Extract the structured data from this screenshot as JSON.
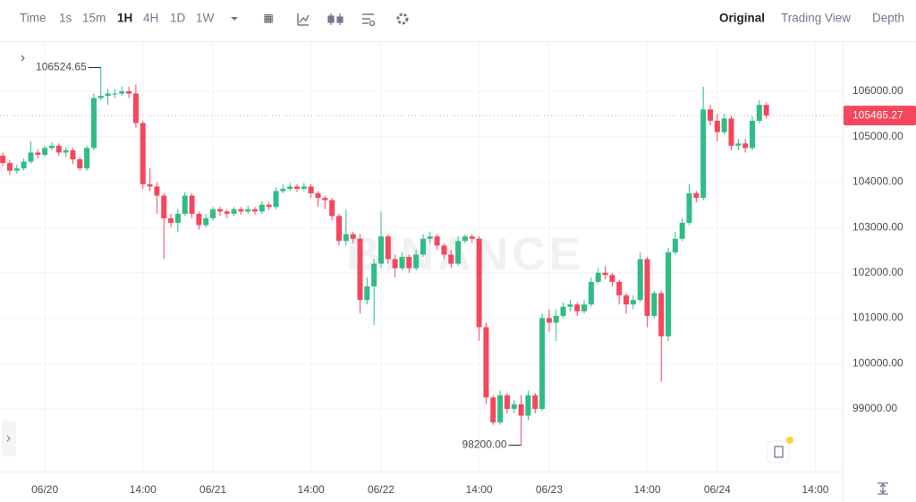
{
  "chart_data": {
    "type": "candlestick",
    "toolbar": {
      "intervals": [
        "Time",
        "1s",
        "15m",
        "1H",
        "4H",
        "1D",
        "1W"
      ],
      "active": "1H",
      "views": [
        "Original",
        "Trading View",
        "Depth"
      ],
      "active_view": "Original"
    },
    "watermark": "BINANCE",
    "up_color": "#2ebd85",
    "down_color": "#f6465d",
    "grid": true,
    "x": [
      -6,
      -5,
      -4,
      -3,
      -2,
      -1,
      0,
      1,
      2,
      3,
      4,
      5,
      6,
      7,
      8,
      9,
      10,
      11,
      12,
      13,
      14,
      15,
      16,
      17,
      18,
      19,
      20,
      21,
      22,
      23,
      24,
      25,
      26,
      27,
      28,
      29,
      30,
      31,
      32,
      33,
      34,
      35,
      36,
      37,
      38,
      39,
      40,
      41,
      42,
      43,
      44,
      45,
      46,
      47,
      48,
      49,
      50,
      51,
      52,
      53,
      54,
      55,
      56,
      57,
      58,
      59,
      60,
      61,
      62,
      63,
      64,
      65,
      66,
      67,
      68,
      69,
      70,
      71,
      72,
      73,
      74,
      75,
      76,
      77,
      78,
      79,
      80,
      81,
      82,
      83,
      84,
      85,
      86,
      87,
      88,
      89,
      90,
      91,
      92,
      93,
      94,
      95,
      96,
      97,
      98,
      99,
      100,
      101,
      102,
      103
    ],
    "open": [
      104580,
      104420,
      104250,
      104300,
      104450,
      104650,
      104600,
      104750,
      104800,
      104650,
      104700,
      104500,
      104300,
      104750,
      105850,
      105900,
      105950,
      105950,
      106000,
      105950,
      105300,
      103950,
      103900,
      103700,
      103200,
      103100,
      103300,
      103700,
      103300,
      103050,
      103200,
      103400,
      103350,
      103300,
      103400,
      103350,
      103400,
      103350,
      103500,
      103450,
      103800,
      103850,
      103900,
      103850,
      103900,
      103750,
      103650,
      103600,
      103250,
      102700,
      102850,
      102750,
      101400,
      101700,
      102200,
      102800,
      102300,
      102100,
      102350,
      102100,
      102400,
      102750,
      102800,
      102600,
      102400,
      102200,
      102700,
      102800,
      102750,
      100800,
      99250,
      98700,
      99300,
      99000,
      99100,
      98850,
      99300,
      99000,
      101000,
      100900,
      101050,
      101250,
      101300,
      101150,
      101300,
      101800,
      102000,
      101950,
      101800,
      101500,
      101300,
      101400,
      102300,
      101050,
      101550,
      100600,
      102450,
      102750,
      103100,
      103750,
      103650,
      105600,
      105350,
      105100,
      105400,
      104800,
      104850,
      104750,
      105350,
      105700
    ],
    "high": [
      104650,
      104480,
      104380,
      104520,
      104900,
      104720,
      104800,
      104880,
      104850,
      104760,
      104750,
      104550,
      104800,
      105950,
      106524.65,
      106050,
      106050,
      106100,
      106100,
      106150,
      105350,
      104300,
      104000,
      103750,
      103300,
      103400,
      103780,
      103750,
      103350,
      103300,
      103450,
      103450,
      103400,
      103450,
      103450,
      103480,
      103450,
      103580,
      103550,
      103880,
      103950,
      103980,
      103950,
      103980,
      103950,
      103800,
      103700,
      103650,
      103300,
      103400,
      102900,
      102850,
      101900,
      102300,
      103350,
      102850,
      102400,
      102450,
      102400,
      102500,
      102850,
      102900,
      102850,
      102650,
      102500,
      102800,
      102850,
      102850,
      102800,
      100900,
      99300,
      99400,
      99350,
      99200,
      99300,
      99400,
      99350,
      101100,
      101200,
      101200,
      101350,
      101400,
      101350,
      101400,
      101900,
      102100,
      102150,
      102000,
      101850,
      101550,
      101500,
      102450,
      102350,
      101600,
      101600,
      102550,
      102900,
      103200,
      103950,
      103800,
      106100,
      105700,
      105500,
      105500,
      105450,
      104950,
      104950,
      105450,
      105800,
      105750
    ],
    "low": [
      104350,
      104150,
      104180,
      104250,
      104400,
      104520,
      104550,
      104700,
      104580,
      104550,
      104400,
      104250,
      104250,
      104700,
      105800,
      105700,
      105850,
      105900,
      105850,
      105200,
      103850,
      103800,
      103300,
      102300,
      103000,
      102900,
      103250,
      103200,
      102950,
      103000,
      103150,
      103250,
      103200,
      103250,
      103280,
      103300,
      103280,
      103300,
      103380,
      103400,
      103750,
      103800,
      103780,
      103800,
      103650,
      103450,
      103400,
      103150,
      102600,
      102600,
      102650,
      101100,
      101300,
      100850,
      102100,
      102200,
      101900,
      102050,
      102000,
      102050,
      102350,
      102650,
      102500,
      102300,
      102100,
      102150,
      102650,
      102650,
      100500,
      99100,
      98650,
      98650,
      98900,
      98900,
      98200,
      98750,
      98900,
      98950,
      100700,
      100500,
      101000,
      101150,
      101050,
      101100,
      101250,
      101750,
      101850,
      101700,
      101300,
      101100,
      101200,
      101350,
      100800,
      101000,
      99600,
      100500,
      102400,
      102700,
      103050,
      103550,
      103600,
      105250,
      104900,
      105050,
      104700,
      104700,
      104650,
      104700,
      105300,
      105400
    ],
    "close": [
      104420,
      104250,
      104300,
      104450,
      104650,
      104600,
      104750,
      104800,
      104650,
      104700,
      104500,
      104300,
      104750,
      105850,
      105900,
      105950,
      105950,
      106000,
      105950,
      105300,
      103950,
      103900,
      103700,
      103200,
      103100,
      103300,
      103700,
      103300,
      103050,
      103200,
      103400,
      103350,
      103300,
      103400,
      103350,
      103400,
      103350,
      103500,
      103450,
      103800,
      103850,
      103900,
      103850,
      103900,
      103750,
      103650,
      103600,
      103250,
      102700,
      102850,
      102750,
      101400,
      101700,
      102200,
      102800,
      102300,
      102100,
      102350,
      102100,
      102400,
      102750,
      102800,
      102600,
      102400,
      102200,
      102700,
      102800,
      102750,
      100800,
      99250,
      98700,
      99300,
      99000,
      99100,
      98850,
      99300,
      99000,
      101000,
      100900,
      101050,
      101250,
      101300,
      101150,
      101300,
      101800,
      102000,
      101950,
      101800,
      101500,
      101300,
      101400,
      102300,
      101050,
      101550,
      100600,
      102450,
      102750,
      103100,
      103750,
      103650,
      105600,
      105350,
      105100,
      105400,
      104800,
      104850,
      104750,
      105350,
      105700,
      105465.27
    ],
    "annotations": [
      {
        "x": 8,
        "value": 106524.65,
        "label": "106524.65"
      },
      {
        "x": 68,
        "value": 98200,
        "label": "98200.00"
      }
    ],
    "xlim": [
      -6.4,
      113.9
    ],
    "xticks": [
      {
        "value": 0,
        "label": "06/20"
      },
      {
        "value": 14,
        "label": "14:00"
      },
      {
        "value": 24,
        "label": "06/21"
      },
      {
        "value": 38,
        "label": "14:00"
      },
      {
        "value": 48,
        "label": "06/22"
      },
      {
        "value": 62,
        "label": "14:00"
      },
      {
        "value": 72,
        "label": "06/23"
      },
      {
        "value": 86,
        "label": "14:00"
      },
      {
        "value": 96,
        "label": "06/24"
      },
      {
        "value": 110,
        "label": "14:00"
      }
    ],
    "ylim": [
      97617,
      107085
    ],
    "yticks": [
      {
        "value": 99000,
        "label": "99000.00"
      },
      {
        "value": 100000,
        "label": "100000.00"
      },
      {
        "value": 101000,
        "label": "101000.00"
      },
      {
        "value": 102000,
        "label": "102000.00"
      },
      {
        "value": 103000,
        "label": "103000.00"
      },
      {
        "value": 104000,
        "label": "104000.00"
      },
      {
        "value": 105000,
        "label": "105000.00"
      },
      {
        "value": 106000,
        "label": "106000.00"
      }
    ]
  }
}
